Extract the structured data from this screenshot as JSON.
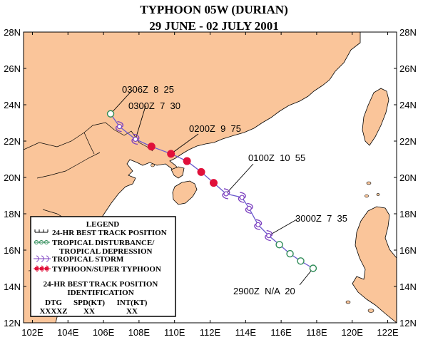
{
  "title": {
    "line1": "TYPHOON 05W (DURIAN)",
    "line2": "29 JUNE - 02 JULY 2001"
  },
  "colors": {
    "land": "#fac59a",
    "sea": "#ffffff",
    "track": "#6a5acd",
    "tropical_disturbance": "#2e8b57",
    "tropical_storm": "#7b3fbf",
    "typhoon": "#e0103a"
  },
  "axes": {
    "lat_labels": [
      "28N",
      "26N",
      "24N",
      "22N",
      "20N",
      "18N",
      "16N",
      "14N",
      "12N"
    ],
    "lon_labels": [
      "102E",
      "104E",
      "106E",
      "108E",
      "110E",
      "112E",
      "114E",
      "116E",
      "118E",
      "120E",
      "122E"
    ],
    "lat_range": [
      12,
      28
    ],
    "lon_range": [
      101.5,
      122.5
    ]
  },
  "annotations": [
    {
      "text": "0306Z  8  25"
    },
    {
      "text": "0300Z  7  30"
    },
    {
      "text": "0200Z  9  75"
    },
    {
      "text": "0100Z  10  55"
    },
    {
      "text": "3000Z  7  35"
    },
    {
      "text": "2900Z  N/A  20"
    }
  ],
  "track": [
    {
      "lon": 117.8,
      "lat": 15.0,
      "type": "TD"
    },
    {
      "lon": 117.1,
      "lat": 15.4,
      "type": "TD"
    },
    {
      "lon": 116.5,
      "lat": 15.8,
      "type": "TD"
    },
    {
      "lon": 115.9,
      "lat": 16.3,
      "type": "TD"
    },
    {
      "lon": 115.3,
      "lat": 16.8,
      "type": "TS"
    },
    {
      "lon": 114.7,
      "lat": 17.4,
      "type": "TS"
    },
    {
      "lon": 114.2,
      "lat": 18.3,
      "type": "TS"
    },
    {
      "lon": 113.8,
      "lat": 18.9,
      "type": "TS"
    },
    {
      "lon": 112.9,
      "lat": 19.1,
      "type": "TS"
    },
    {
      "lon": 112.2,
      "lat": 19.7,
      "type": "TY"
    },
    {
      "lon": 111.5,
      "lat": 20.3,
      "type": "TY"
    },
    {
      "lon": 110.7,
      "lat": 20.9,
      "type": "TY"
    },
    {
      "lon": 109.8,
      "lat": 21.3,
      "type": "TY"
    },
    {
      "lon": 108.7,
      "lat": 21.7,
      "type": "TY"
    },
    {
      "lon": 107.8,
      "lat": 22.1,
      "type": "TS"
    },
    {
      "lon": 106.9,
      "lat": 22.8,
      "type": "TS"
    },
    {
      "lon": 106.4,
      "lat": 23.5,
      "type": "TD"
    }
  ],
  "legend": {
    "title": "LEGEND",
    "items": [
      {
        "symbol": "best-track",
        "label": "24-HR BEST TRACK POSITION"
      },
      {
        "symbol": "TD",
        "label": "TROPICAL DISTURBANCE/"
      },
      {
        "symbol": "",
        "label": "TROPICAL DEPRESSION"
      },
      {
        "symbol": "TS",
        "label": "TROPICAL STORM"
      },
      {
        "symbol": "TY",
        "label": "TYPHOON/SUPER TYPHOON"
      }
    ],
    "ident_line1": "24-HR BEST TRACK POSITION",
    "ident_line2": "IDENTIFICATION",
    "col_headers": [
      "DTG",
      "SPD(KT)",
      "INT(KT)"
    ],
    "col_values": [
      "XXXXZ",
      "XX",
      "XX"
    ]
  }
}
